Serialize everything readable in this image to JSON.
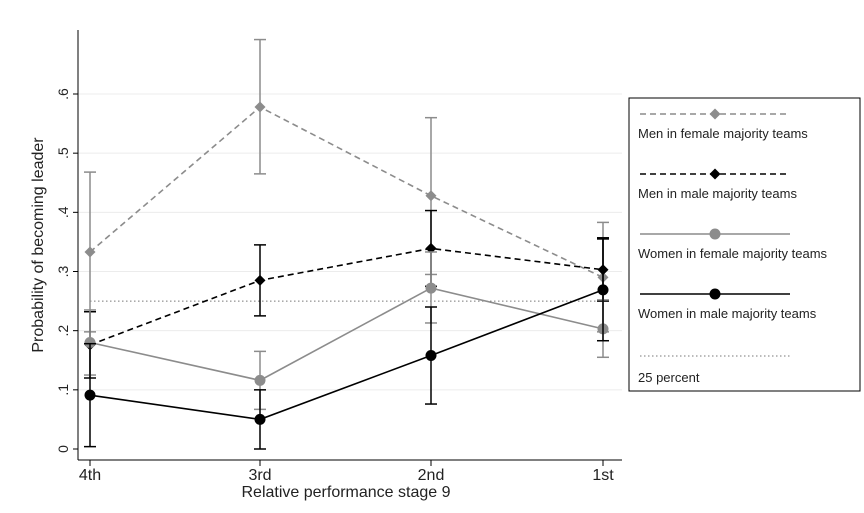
{
  "chart_data": {
    "type": "line",
    "xlabel": "Relative performance stage 9",
    "ylabel": "Probability of becoming leader",
    "categories": [
      "4th",
      "3rd",
      "2nd",
      "1st"
    ],
    "ylim": [
      0,
      0.7
    ],
    "yticks": [
      0,
      0.1,
      0.2,
      0.3,
      0.4,
      0.5,
      0.6
    ],
    "ytick_labels": [
      "0",
      ".1",
      ".2",
      ".3",
      ".4",
      ".5",
      ".6"
    ],
    "grid": true,
    "legend": "right",
    "reference_line": {
      "value": 0.25,
      "name": "25 percent",
      "color": "#777777"
    },
    "series": [
      {
        "name": "Men in female majority teams",
        "values": [
          0.333,
          0.578,
          0.428,
          0.29
        ],
        "lower": [
          0.198,
          0.465,
          0.295,
          0.198
        ],
        "upper": [
          0.468,
          0.692,
          0.56,
          0.383
        ],
        "color": "#8c8c8c",
        "dash": "dashed",
        "marker": "diamond"
      },
      {
        "name": "Men in male majority teams",
        "values": [
          0.176,
          0.285,
          0.339,
          0.303
        ],
        "lower": [
          0.12,
          0.225,
          0.275,
          0.25
        ],
        "upper": [
          0.232,
          0.345,
          0.403,
          0.357
        ],
        "color": "#000000",
        "dash": "dashed",
        "marker": "diamond"
      },
      {
        "name": "Women in female majority teams",
        "values": [
          0.18,
          0.116,
          0.272,
          0.203
        ],
        "lower": [
          0.125,
          0.067,
          0.213,
          0.155
        ],
        "upper": [
          0.235,
          0.165,
          0.333,
          0.252
        ],
        "color": "#8c8c8c",
        "dash": "solid",
        "marker": "circle"
      },
      {
        "name": "Women in male majority teams",
        "values": [
          0.091,
          0.05,
          0.158,
          0.269
        ],
        "lower": [
          0.004,
          0.0,
          0.076,
          0.183
        ],
        "upper": [
          0.178,
          0.1,
          0.24,
          0.355
        ],
        "color": "#000000",
        "dash": "solid",
        "marker": "circle"
      }
    ]
  }
}
